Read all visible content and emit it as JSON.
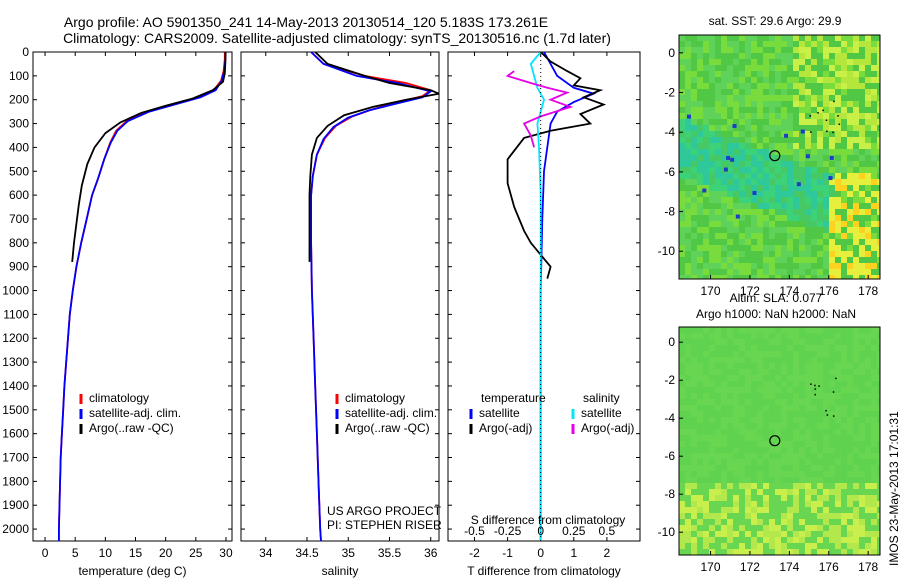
{
  "header": {
    "line1": "Argo profile: AO 5901350_241 14-May-2013 20130514_120 5.183S 173.261E",
    "line2": "Climatology: CARS2009. Satellite-adjusted climatology: synTS_20130516.nc (1.7d later)"
  },
  "colors": {
    "climatology": "#ff0000",
    "satellite": "#0000ff",
    "argo": "#000000",
    "salinity_satellite": "#00e6ff",
    "salinity_argo": "#e600e6"
  },
  "depth_axis": {
    "ticks": [
      "0",
      "100",
      "200",
      "300",
      "400",
      "500",
      "600",
      "700",
      "800",
      "900",
      "1000",
      "1100",
      "1200",
      "1300",
      "1400",
      "1500",
      "1600",
      "1700",
      "1800",
      "1900",
      "2000"
    ]
  },
  "chart_data": [
    {
      "type": "line",
      "name": "temperature",
      "xlabel": "temperature (deg C)",
      "ylabel": "",
      "xlim": [
        -2,
        31
      ],
      "ylim": [
        2050,
        0
      ],
      "xticks": [
        "0",
        "5",
        "10",
        "15",
        "20",
        "25",
        "30"
      ],
      "legend": {
        "placement": "bottom-left",
        "entries": [
          "climatology",
          "satellite-adj. clim.",
          "Argo(..raw -QC)"
        ]
      },
      "series": [
        {
          "name": "climatology",
          "color": "#ff0000",
          "points": [
            [
              29.8,
              0
            ],
            [
              29.8,
              30
            ],
            [
              29.6,
              80
            ],
            [
              29.2,
              120
            ],
            [
              28.0,
              160
            ],
            [
              25.5,
              190
            ],
            [
              21.0,
              220
            ],
            [
              17.0,
              250
            ],
            [
              13.5,
              290
            ],
            [
              11.8,
              330
            ],
            [
              10.8,
              380
            ],
            [
              9.8,
              450
            ],
            [
              8.8,
              530
            ],
            [
              7.8,
              600
            ],
            [
              6.9,
              700
            ],
            [
              6.0,
              800
            ],
            [
              5.2,
              900
            ],
            [
              4.6,
              1000
            ],
            [
              4.1,
              1100
            ],
            [
              3.8,
              1200
            ],
            [
              3.5,
              1300
            ],
            [
              3.2,
              1400
            ],
            [
              3.0,
              1500
            ],
            [
              2.8,
              1600
            ],
            [
              2.6,
              1700
            ],
            [
              2.5,
              1800
            ],
            [
              2.4,
              1900
            ],
            [
              2.3,
              2000
            ],
            [
              2.3,
              2050
            ]
          ]
        },
        {
          "name": "satellite-adj. clim.",
          "color": "#0000ff",
          "points": [
            [
              29.9,
              0
            ],
            [
              29.9,
              30
            ],
            [
              29.7,
              80
            ],
            [
              29.3,
              120
            ],
            [
              28.3,
              160
            ],
            [
              25.8,
              190
            ],
            [
              21.5,
              220
            ],
            [
              17.3,
              250
            ],
            [
              13.7,
              290
            ],
            [
              12.0,
              330
            ],
            [
              10.9,
              380
            ],
            [
              9.8,
              450
            ],
            [
              8.8,
              530
            ],
            [
              7.8,
              600
            ],
            [
              6.9,
              700
            ],
            [
              6.0,
              800
            ],
            [
              5.2,
              900
            ],
            [
              4.6,
              1000
            ],
            [
              4.1,
              1100
            ],
            [
              3.8,
              1200
            ],
            [
              3.5,
              1300
            ],
            [
              3.2,
              1400
            ],
            [
              3.0,
              1500
            ],
            [
              2.8,
              1600
            ],
            [
              2.6,
              1700
            ],
            [
              2.5,
              1800
            ],
            [
              2.4,
              1900
            ],
            [
              2.3,
              2000
            ],
            [
              2.3,
              2050
            ]
          ]
        },
        {
          "name": "Argo(..raw -QC)",
          "color": "#000000",
          "points": [
            [
              29.9,
              0
            ],
            [
              29.9,
              40
            ],
            [
              29.8,
              90
            ],
            [
              29.5,
              125
            ],
            [
              27.8,
              160
            ],
            [
              24.5,
              195
            ],
            [
              20.0,
              225
            ],
            [
              16.0,
              255
            ],
            [
              12.5,
              295
            ],
            [
              10.0,
              340
            ],
            [
              8.2,
              400
            ],
            [
              7.0,
              470
            ],
            [
              6.1,
              560
            ],
            [
              5.6,
              640
            ],
            [
              5.2,
              720
            ],
            [
              4.8,
              800
            ],
            [
              4.5,
              880
            ]
          ]
        }
      ]
    },
    {
      "type": "line",
      "name": "salinity",
      "xlabel": "salinity",
      "ylabel": "",
      "xlim": [
        33.7,
        36.1
      ],
      "ylim": [
        2050,
        0
      ],
      "xticks": [
        "34",
        "34.5",
        "35",
        "35.5",
        "36"
      ],
      "legend": {
        "placement": "bottom-right",
        "entries": [
          "climatology",
          "satellite-adj. clim.",
          "Argo(..raw -QC)"
        ]
      },
      "annotation": {
        "line1": "US ARGO PROJECT",
        "line2": "PI: STEPHEN RISER"
      },
      "series": [
        {
          "name": "climatology",
          "color": "#ff0000",
          "points": [
            [
              34.55,
              0
            ],
            [
              34.7,
              50
            ],
            [
              35.2,
              100
            ],
            [
              35.7,
              130
            ],
            [
              36.0,
              160
            ],
            [
              35.9,
              185
            ],
            [
              35.6,
              210
            ],
            [
              35.3,
              240
            ],
            [
              35.05,
              270
            ],
            [
              34.85,
              310
            ],
            [
              34.72,
              360
            ],
            [
              34.62,
              430
            ],
            [
              34.57,
              520
            ],
            [
              34.55,
              600
            ],
            [
              34.55,
              800
            ],
            [
              34.56,
              1000
            ],
            [
              34.58,
              1200
            ],
            [
              34.6,
              1400
            ],
            [
              34.62,
              1600
            ],
            [
              34.64,
              1800
            ],
            [
              34.66,
              2000
            ],
            [
              34.67,
              2050
            ]
          ]
        },
        {
          "name": "satellite-adj. clim.",
          "color": "#0000ff",
          "points": [
            [
              34.55,
              0
            ],
            [
              34.7,
              50
            ],
            [
              35.1,
              100
            ],
            [
              35.6,
              130
            ],
            [
              36.0,
              165
            ],
            [
              35.9,
              190
            ],
            [
              35.6,
              215
            ],
            [
              35.25,
              245
            ],
            [
              35.0,
              275
            ],
            [
              34.82,
              315
            ],
            [
              34.7,
              365
            ],
            [
              34.62,
              430
            ],
            [
              34.57,
              520
            ],
            [
              34.55,
              600
            ],
            [
              34.55,
              800
            ],
            [
              34.56,
              1000
            ],
            [
              34.58,
              1200
            ],
            [
              34.6,
              1400
            ],
            [
              34.62,
              1600
            ],
            [
              34.64,
              1800
            ],
            [
              34.66,
              2000
            ],
            [
              34.67,
              2050
            ]
          ]
        },
        {
          "name": "Argo(..raw -QC)",
          "color": "#000000",
          "points": [
            [
              34.6,
              0
            ],
            [
              34.75,
              50
            ],
            [
              35.2,
              100
            ],
            [
              35.5,
              130
            ],
            [
              36.0,
              160
            ],
            [
              36.1,
              175
            ],
            [
              35.7,
              200
            ],
            [
              35.3,
              230
            ],
            [
              34.95,
              265
            ],
            [
              34.75,
              310
            ],
            [
              34.62,
              360
            ],
            [
              34.56,
              430
            ],
            [
              34.54,
              520
            ],
            [
              34.53,
              600
            ],
            [
              34.53,
              700
            ],
            [
              34.53,
              800
            ],
            [
              34.53,
              880
            ]
          ]
        }
      ]
    },
    {
      "type": "line",
      "name": "difference",
      "xlabel": "T difference from climatology",
      "xlabel_top": "S difference from climatology",
      "ylabel": "",
      "xlim": [
        -2.8,
        3.0
      ],
      "ylim": [
        2050,
        0
      ],
      "xticks": [
        "-2",
        "-1",
        "0",
        "1",
        "2"
      ],
      "s_ticks": [
        "-0.5",
        "-0.25",
        "0",
        "0.25",
        "0.5"
      ],
      "legend": {
        "placement": "bottom",
        "temperature_heading": "temperature",
        "salinity_heading": "salinity",
        "entries": [
          "satellite",
          "Argo(-adj)",
          "satellite",
          "Argo(-adj)"
        ]
      },
      "series": [
        {
          "name": "satellite",
          "color": "#0000ff",
          "points": [
            [
              0.1,
              0
            ],
            [
              0.3,
              50
            ],
            [
              0.5,
              100
            ],
            [
              1.0,
              150
            ],
            [
              1.6,
              175
            ],
            [
              1.0,
              210
            ],
            [
              0.5,
              250
            ],
            [
              0.3,
              300
            ],
            [
              0.2,
              400
            ],
            [
              0.1,
              500
            ],
            [
              0.05,
              700
            ],
            [
              0.0,
              1000
            ],
            [
              0.0,
              2050
            ]
          ]
        },
        {
          "name": "Argo(-adj)",
          "color": "#000000",
          "points": [
            [
              0.0,
              0
            ],
            [
              0.3,
              40
            ],
            [
              0.8,
              80
            ],
            [
              1.2,
              110
            ],
            [
              1.0,
              140
            ],
            [
              1.8,
              160
            ],
            [
              1.3,
              190
            ],
            [
              1.9,
              220
            ],
            [
              1.2,
              260
            ],
            [
              1.5,
              300
            ],
            [
              0.3,
              330
            ],
            [
              -0.5,
              360
            ],
            [
              -1.0,
              450
            ],
            [
              -1.0,
              550
            ],
            [
              -0.8,
              650
            ],
            [
              -0.5,
              750
            ],
            [
              -0.3,
              800
            ],
            [
              0.0,
              850
            ],
            [
              0.3,
              900
            ],
            [
              0.2,
              950
            ]
          ]
        },
        {
          "name": "satellite",
          "color": "#00e6ff",
          "points": [
            [
              0.0,
              0
            ],
            [
              -0.3,
              50
            ],
            [
              -0.2,
              100
            ],
            [
              -0.1,
              150
            ],
            [
              0.1,
              200
            ],
            [
              0.0,
              250
            ],
            [
              -0.1,
              300
            ],
            [
              -0.05,
              400
            ],
            [
              0.0,
              600
            ],
            [
              0.0,
              2050
            ]
          ]
        },
        {
          "name": "Argo(-adj)",
          "color": "#e600e6",
          "points": [
            [
              -0.8,
              80
            ],
            [
              -1.0,
              100
            ],
            [
              -0.3,
              130
            ],
            [
              0.2,
              150
            ],
            [
              0.8,
              170
            ],
            [
              0.3,
              200
            ],
            [
              0.9,
              230
            ],
            [
              0.0,
              270
            ],
            [
              -0.5,
              300
            ],
            [
              -0.3,
              350
            ],
            [
              -0.2,
              400
            ]
          ]
        }
      ]
    },
    {
      "type": "heatmap",
      "name": "sst_map",
      "title": "sat. SST: 29.6 Argo: 29.9",
      "xlim": [
        168.4,
        178.6
      ],
      "ylim": [
        -11.4,
        0.9
      ],
      "xticks": [
        "170",
        "172",
        "174",
        "176",
        "178"
      ],
      "yticks": [
        "0",
        "-2",
        "-4",
        "-6",
        "-8",
        "-10"
      ],
      "marker": {
        "lon": 173.261,
        "lat": -5.183
      }
    },
    {
      "type": "heatmap",
      "name": "sla_map",
      "title": "Altim. SLA: 0.077",
      "subtitle": "Argo h1000: NaN h2000: NaN",
      "xlim": [
        168.4,
        178.6
      ],
      "ylim": [
        -11.2,
        0.8
      ],
      "xticks": [
        "170",
        "172",
        "174",
        "176",
        "178"
      ],
      "yticks": [
        "0",
        "-2",
        "-4",
        "-6",
        "-8",
        "-10"
      ],
      "marker": {
        "lon": 173.261,
        "lat": -5.183
      }
    }
  ],
  "footer": {
    "stamp": "IMOS 23-May-2013 17:01:31"
  }
}
